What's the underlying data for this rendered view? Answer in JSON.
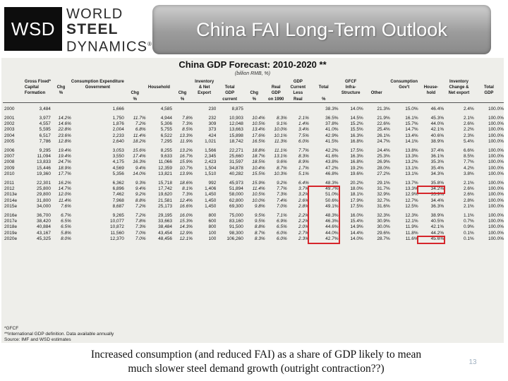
{
  "logo": {
    "mark": "WSD",
    "line1": "WORLD",
    "line2": "STEEL",
    "line3": "DYNAMICS",
    "tm": "®"
  },
  "slide": {
    "title": "China FAI Long-Term Outlook",
    "number": "13"
  },
  "table": {
    "title": "China GDP Forecast: 2010-2020 **",
    "subtitle": "(billion RMB, %)",
    "header_rows": [
      [
        "Gross Fixed*",
        "",
        "Consumption Expenditure",
        "",
        "",
        "",
        "Inventory",
        "",
        "",
        "",
        "GDP",
        "",
        "GFCF",
        "",
        "Consumption",
        "",
        "Inventory",
        ""
      ],
      [
        "Capital",
        "Chg",
        "Government",
        "",
        "Household",
        "",
        "& Net",
        "Total",
        "",
        "Real",
        "Current",
        "Total",
        "Infra-",
        "",
        "Gov't",
        "House-",
        "Change &",
        "Total"
      ],
      [
        "Formation",
        "%",
        "",
        "Chg",
        "",
        "Chg",
        "Export",
        "GDP",
        "Chg",
        "GDP",
        "Less",
        "",
        "Structure",
        "Other",
        "",
        "hold",
        "Net export",
        "GDP"
      ],
      [
        "",
        "",
        "",
        "%",
        "",
        "%",
        "",
        "current",
        "%",
        "on 1990",
        "Real",
        "%",
        "",
        "",
        "",
        "",
        "",
        ""
      ]
    ],
    "groups": [
      [
        [
          "2000",
          "3,484",
          "",
          "1,666",
          "",
          "4,585",
          "",
          "230",
          "8,875",
          "",
          "",
          "",
          "38.3%",
          "14.0%",
          "21.3%",
          "15.0%",
          "46.4%",
          "2.4%",
          "100.0%"
        ]
      ],
      [
        [
          "2001",
          "3,977",
          "14.2%",
          "1,750",
          "11.7%",
          "4,944",
          "7.8%",
          "232",
          "10,903",
          "10.4%",
          "8.3%",
          "2.1%",
          "36.5%",
          "14.5%",
          "21.9%",
          "16.1%",
          "45.3%",
          "2.1%",
          "100.0%"
        ],
        [
          "2002",
          "4,557",
          "14.6%",
          "1,876",
          "7.2%",
          "5,306",
          "7.3%",
          "309",
          "12,048",
          "10.5%",
          "9.1%",
          "1.4%",
          "37.8%",
          "15.2%",
          "22.6%",
          "15.7%",
          "44.0%",
          "2.6%",
          "100.0%"
        ],
        [
          "2003",
          "5,595",
          "22.8%",
          "2,004",
          "6.8%",
          "5,755",
          "8.5%",
          "373",
          "13,663",
          "13.4%",
          "10.0%",
          "3.4%",
          "41.0%",
          "15.5%",
          "25.4%",
          "14.7%",
          "42.1%",
          "2.2%",
          "100.0%"
        ],
        [
          "2004",
          "6,517",
          "23.6%",
          "2,233",
          "11.4%",
          "6,522",
          "13.3%",
          "424",
          "15,898",
          "17.6%",
          "10.1%",
          "7.5%",
          "42.9%",
          "16.3%",
          "26.1%",
          "13.4%",
          "40.6%",
          "2.3%",
          "100.0%"
        ],
        [
          "2005",
          "7,786",
          "12.8%",
          "2,640",
          "18.2%",
          "7,295",
          "11.9%",
          "1,021",
          "18,742",
          "16.5%",
          "11.3%",
          "6.0%",
          "41.5%",
          "16.8%",
          "24.7%",
          "14.1%",
          "38.9%",
          "5.4%",
          "100.0%"
        ]
      ],
      [
        [
          "2006",
          "9,295",
          "19.4%",
          "3,053",
          "15.6%",
          "8,255",
          "13.2%",
          "1,566",
          "22,271",
          "18.8%",
          "11.1%",
          "7.7%",
          "42.2%",
          "17.5%",
          "24.4%",
          "13.8%",
          "37.4%",
          "6.6%",
          "100.0%"
        ],
        [
          "2007",
          "11,094",
          "19.4%",
          "3,550",
          "17.4%",
          "9,633",
          "16.7%",
          "2,345",
          "25,660",
          "18.7%",
          "13.1%",
          "8.3%",
          "41.6%",
          "16.3%",
          "25.3%",
          "13.3%",
          "36.1%",
          "8.5%",
          "100.0%"
        ],
        [
          "2008",
          "13,833",
          "24.7%",
          "4,175",
          "16.3%",
          "11,066",
          "15.9%",
          "2,423",
          "31,597",
          "18.5%",
          "9.6%",
          "8.9%",
          "43.8%",
          "16.8%",
          "26.9%",
          "13.2%",
          "35.3%",
          "7.7%",
          "100.0%"
        ],
        [
          "2009",
          "15,446",
          "18.9%",
          "4,569",
          "9.4%",
          "12,359",
          "10.7%",
          "1,504",
          "34,878",
          "10.4%",
          "8.7%",
          "1.7%",
          "47.2%",
          "19.2%",
          "28.0%",
          "13.1%",
          "35.4%",
          "4.2%",
          "100.0%"
        ],
        [
          "2010",
          "19,360",
          "17.7%",
          "5,356",
          "14.0%",
          "13,821",
          "13.9%",
          "1,510",
          "40,282",
          "15.5%",
          "10.3%",
          "5.1%",
          "46.8%",
          "19.6%",
          "27.2%",
          "13.1%",
          "34.3%",
          "3.8%",
          "100.0%"
        ]
      ],
      [
        [
          "2011",
          "22,301",
          "16.2%",
          "6,362",
          "9.3%",
          "15,718",
          "18.6%",
          "992",
          "45,973",
          "15.9%",
          "9.2%",
          "6.4%",
          "48.3%",
          "20.2%",
          "29.1%",
          "13.7%",
          "35.8%",
          "2.1%",
          "100.0%"
        ],
        [
          "2012",
          "25,800",
          "14.7%",
          "6,896",
          "9.4%",
          "17,742",
          "8.1%",
          "1,406",
          "51,894",
          "11.4%",
          "7.7%",
          "3.7%",
          "49.7%",
          "18.0%",
          "31.7%",
          "13.3%",
          "34.2%",
          "2.6%",
          "100.0%"
        ],
        [
          "2013e",
          "29,800",
          "12.0%",
          "7,462",
          "9.2%",
          "19,620",
          "7.3%",
          "1,450",
          "58,000",
          "10.5%",
          "7.3%",
          "3.2%",
          "51.0%",
          "18.1%",
          "32.9%",
          "12.9%",
          "33.9%",
          "2.6%",
          "100.0%"
        ],
        [
          "2014e",
          "31,800",
          "11.4%",
          "7,968",
          "8.8%",
          "21,581",
          "12.4%",
          "1,450",
          "62,800",
          "10.0%",
          "7.4%",
          "2.6%",
          "50.6%",
          "17.9%",
          "32.7%",
          "12.7%",
          "34.4%",
          "2.8%",
          "100.0%"
        ],
        [
          "2015e",
          "34,000",
          "7.6%",
          "8,687",
          "7.2%",
          "25,173",
          "16.6%",
          "1,450",
          "69,300",
          "9.8%",
          "7.0%",
          "2.8%",
          "49.1%",
          "17.5%",
          "31.6%",
          "12.5%",
          "36.3%",
          "2.1%",
          "100.0%"
        ]
      ],
      [
        [
          "2016e",
          "36,700",
          "6.7%",
          "9,265",
          "7.2%",
          "29,195",
          "16.0%",
          "800",
          "75,000",
          "9.5%",
          "7.1%",
          "2.2%",
          "48.3%",
          "16.0%",
          "32.3%",
          "12.3%",
          "38.9%",
          "1.1%",
          "100.0%"
        ],
        [
          "2017e",
          "38,420",
          "6.5%",
          "10,077",
          "7.8%",
          "33,663",
          "15.3%",
          "600",
          "83,160",
          "9.5%",
          "6.9%",
          "2.2%",
          "46.3%",
          "15.4%",
          "30.9%",
          "12.1%",
          "40.5%",
          "0.7%",
          "100.0%"
        ],
        [
          "2018e",
          "40,884",
          "6.5%",
          "10,872",
          "7.3%",
          "38,484",
          "14.3%",
          "800",
          "91,500",
          "8.8%",
          "6.5%",
          "2.0%",
          "44.6%",
          "14.9%",
          "30.0%",
          "11.9%",
          "42.1%",
          "0.9%",
          "100.0%"
        ],
        [
          "2019e",
          "43,167",
          "5.8%",
          "11,560",
          "7.0%",
          "43,454",
          "12.9%",
          "100",
          "98,300",
          "8.7%",
          "6.0%",
          "2.7%",
          "44.0%",
          "14.4%",
          "29.6%",
          "11.8%",
          "44.2%",
          "0.1%",
          "100.0%"
        ],
        [
          "2020e",
          "45,325",
          "8.0%",
          "12,370",
          "7.0%",
          "48,456",
          "12.1%",
          "100",
          "106,260",
          "8.3%",
          "6.0%",
          "2.3%",
          "42.7%",
          "14.0%",
          "28.7%",
          "11.6%",
          "45.6%",
          "0.1%",
          "100.0%"
        ]
      ]
    ],
    "footnotes": [
      "*GFCF",
      "**International GDP definition. Data available annually",
      "Source: IMF and WSD estimates"
    ]
  },
  "caption": {
    "line1": "Increased consumption (and reduced FAI) as a share of GDP likely to mean",
    "line2": "much slower steel demand growth (outright contraction??)"
  },
  "colors": {
    "highlight": "#d6262b",
    "banner": "#9c9c9c"
  }
}
